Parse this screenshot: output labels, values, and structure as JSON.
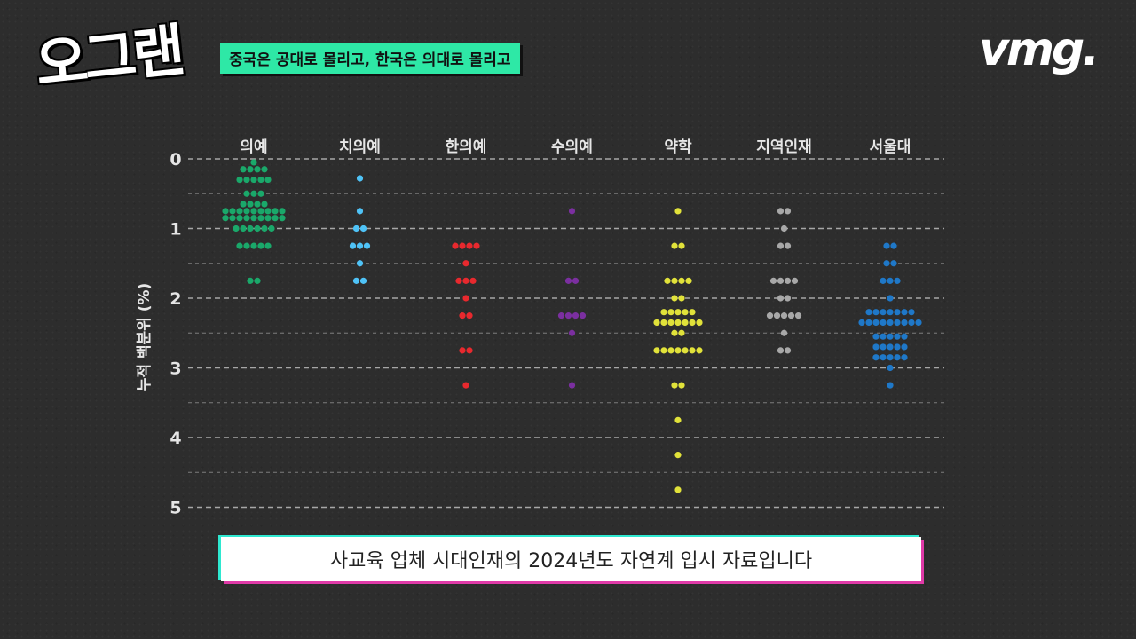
{
  "logo": {
    "text": "오그랜"
  },
  "headline": {
    "text": "중국은 공대로 몰리고, 한국은 의대로 몰리고"
  },
  "brand": {
    "text": "vmg."
  },
  "caption": {
    "text": "사교육 업체 시대인재의 2024년도 자연계 입시 자료입니다"
  },
  "colors": {
    "background": "#2d2d2d",
    "headline_bg": "#2ee8a6",
    "grid": "#bdbdbd",
    "axis_text": "#e6e6e6"
  },
  "chart_data": {
    "type": "scatter",
    "subtype": "dot-strip",
    "ylabel": "누적 백분위 (%)",
    "ylim": [
      0,
      5
    ],
    "y_inverted": true,
    "yticks": [
      "0",
      "1",
      "2",
      "3",
      "4",
      "5"
    ],
    "ytick_values": [
      0,
      1,
      2,
      3,
      4,
      5
    ],
    "grid_values": [
      0,
      0.5,
      1,
      1.5,
      2,
      2.5,
      3,
      3.5,
      4,
      4.5,
      5
    ],
    "grid": "dashed",
    "categories": [
      "의예",
      "치의예",
      "한의예",
      "수의예",
      "약학",
      "지역인재",
      "서울대"
    ],
    "series": [
      {
        "category": "의예",
        "color": "#1aa86a",
        "levels": [
          {
            "y": 0.05,
            "count": 1
          },
          {
            "y": 0.15,
            "count": 4
          },
          {
            "y": 0.3,
            "count": 5
          },
          {
            "y": 0.5,
            "count": 3
          },
          {
            "y": 0.65,
            "count": 4
          },
          {
            "y": 0.75,
            "count": 9
          },
          {
            "y": 0.85,
            "count": 9
          },
          {
            "y": 1.0,
            "count": 6
          },
          {
            "y": 1.25,
            "count": 5
          },
          {
            "y": 1.75,
            "count": 2
          }
        ]
      },
      {
        "category": "치의예",
        "color": "#4fc3f7",
        "levels": [
          {
            "y": 0.28,
            "count": 1
          },
          {
            "y": 0.75,
            "count": 1
          },
          {
            "y": 1.0,
            "count": 2
          },
          {
            "y": 1.25,
            "count": 3
          },
          {
            "y": 1.5,
            "count": 1
          },
          {
            "y": 1.75,
            "count": 2
          }
        ]
      },
      {
        "category": "한의예",
        "color": "#e8292e",
        "levels": [
          {
            "y": 1.25,
            "count": 4
          },
          {
            "y": 1.5,
            "count": 1
          },
          {
            "y": 1.75,
            "count": 3
          },
          {
            "y": 2.0,
            "count": 1
          },
          {
            "y": 2.25,
            "count": 2
          },
          {
            "y": 2.75,
            "count": 2
          },
          {
            "y": 3.25,
            "count": 1
          }
        ]
      },
      {
        "category": "수의예",
        "color": "#7b2fa0",
        "levels": [
          {
            "y": 0.75,
            "count": 1
          },
          {
            "y": 1.75,
            "count": 2
          },
          {
            "y": 2.25,
            "count": 4
          },
          {
            "y": 2.5,
            "count": 1
          },
          {
            "y": 3.25,
            "count": 1
          }
        ]
      },
      {
        "category": "약학",
        "color": "#e1e23a",
        "levels": [
          {
            "y": 0.75,
            "count": 1
          },
          {
            "y": 1.25,
            "count": 2
          },
          {
            "y": 1.75,
            "count": 4
          },
          {
            "y": 2.0,
            "count": 2
          },
          {
            "y": 2.2,
            "count": 5
          },
          {
            "y": 2.35,
            "count": 7
          },
          {
            "y": 2.5,
            "count": 2
          },
          {
            "y": 2.75,
            "count": 7
          },
          {
            "y": 3.25,
            "count": 2
          },
          {
            "y": 3.75,
            "count": 1
          },
          {
            "y": 4.25,
            "count": 1
          },
          {
            "y": 4.75,
            "count": 1
          }
        ]
      },
      {
        "category": "지역인재",
        "color": "#a8a8a8",
        "levels": [
          {
            "y": 0.75,
            "count": 2
          },
          {
            "y": 1.0,
            "count": 1
          },
          {
            "y": 1.25,
            "count": 2
          },
          {
            "y": 1.75,
            "count": 4
          },
          {
            "y": 2.0,
            "count": 2
          },
          {
            "y": 2.25,
            "count": 5
          },
          {
            "y": 2.5,
            "count": 1
          },
          {
            "y": 2.75,
            "count": 2
          }
        ]
      },
      {
        "category": "서울대",
        "color": "#1f78c8",
        "levels": [
          {
            "y": 1.25,
            "count": 2
          },
          {
            "y": 1.5,
            "count": 2
          },
          {
            "y": 1.75,
            "count": 3
          },
          {
            "y": 2.0,
            "count": 1
          },
          {
            "y": 2.2,
            "count": 7
          },
          {
            "y": 2.35,
            "count": 9
          },
          {
            "y": 2.55,
            "count": 5
          },
          {
            "y": 2.7,
            "count": 5
          },
          {
            "y": 2.85,
            "count": 5
          },
          {
            "y": 3.0,
            "count": 1
          },
          {
            "y": 3.25,
            "count": 1
          }
        ]
      }
    ]
  }
}
